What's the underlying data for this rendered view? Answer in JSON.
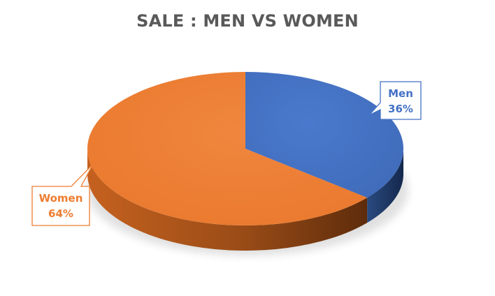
{
  "chart_data": {
    "type": "pie",
    "title": "SALE : MEN VS WOMEN",
    "categories": [
      "Men",
      "Women"
    ],
    "values": [
      36,
      64
    ],
    "value_labels": [
      "36%",
      "64%"
    ],
    "colors": {
      "Men": "#4472C4",
      "Women": "#ED7D31",
      "Men_side": "#1F3864",
      "Women_side": "#A24F17"
    },
    "legend": "none",
    "style": "3d"
  }
}
